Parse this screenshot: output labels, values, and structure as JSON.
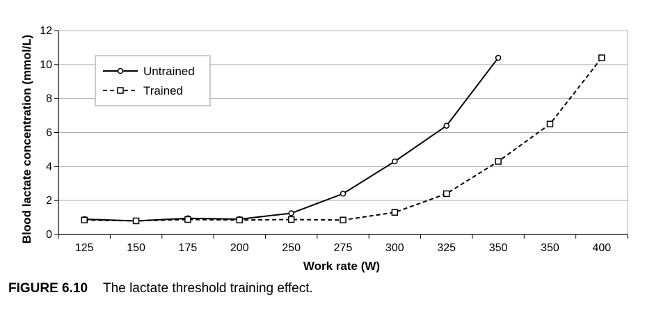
{
  "chart_data": {
    "type": "line",
    "categories": [
      "125",
      "150",
      "175",
      "200",
      "250",
      "275",
      "300",
      "325",
      "350",
      "350",
      "400"
    ],
    "series": [
      {
        "name": "Untrained",
        "marker": "circle",
        "dash": "solid",
        "values": [
          0.9,
          0.8,
          0.95,
          0.9,
          1.25,
          2.4,
          4.3,
          6.4,
          10.4,
          null,
          null
        ]
      },
      {
        "name": "Trained",
        "marker": "square",
        "dash": "dashed",
        "values": [
          0.85,
          0.8,
          0.88,
          0.85,
          0.88,
          0.85,
          1.3,
          2.4,
          4.3,
          6.5,
          10.4
        ]
      }
    ],
    "xlabel": "Work rate (W)",
    "ylabel": "Blood lactate concentration (mmol/L)",
    "ylim": [
      0,
      12
    ],
    "yticks": [
      "0",
      "2",
      "4",
      "6",
      "8",
      "10",
      "12"
    ],
    "grid": "horizontal",
    "legend": "top-left",
    "colors": {
      "line": "#000000",
      "grid": "#b0b0b0",
      "frame": "#000000"
    }
  },
  "caption": {
    "label": "FIGURE 6.10",
    "text": "The lactate threshold training effect."
  }
}
